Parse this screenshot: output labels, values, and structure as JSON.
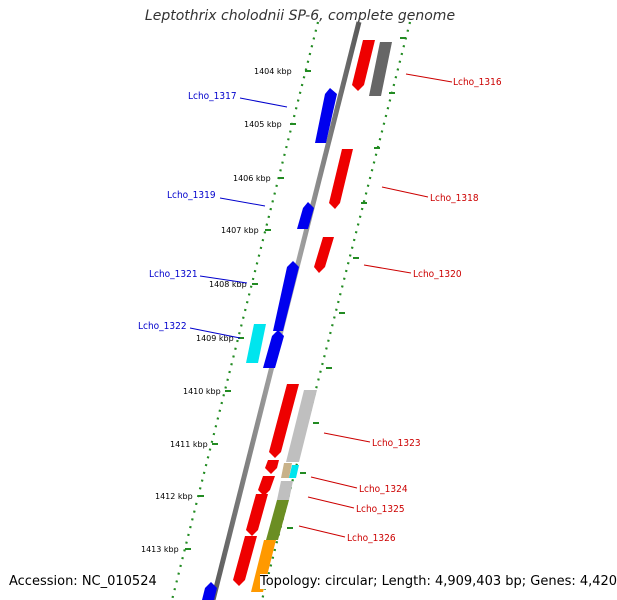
{
  "title": "Leptothrix cholodnii SP-6, complete genome",
  "footer": {
    "accession": "Accession: NC_010524",
    "summary": "Topology: circular; Length: 4,909,403 bp; Genes: 4,420"
  },
  "colors": {
    "forward_gene": "#0000ee",
    "reverse_gene": "#ee0000",
    "rrna_or_other_cyan": "#00e5ee",
    "hypothetical_gray": "#bfbfbf",
    "dark_gray": "#666666",
    "olive": "#6b8e23",
    "orange": "#ff9900",
    "tan": "#c8b28a",
    "tick_green": "#228b22",
    "backbone_gray": "#808080"
  },
  "kbp_ticks": [
    "1404 kbp",
    "1405 kbp",
    "1406 kbp",
    "1407 kbp",
    "1408 kbp",
    "1409 kbp",
    "1410 kbp",
    "1411 kbp",
    "1412 kbp",
    "1413 kbp"
  ],
  "gene_labels": {
    "forward": [
      "Lcho_1317",
      "Lcho_1319",
      "Lcho_1321",
      "Lcho_1322"
    ],
    "reverse": [
      "Lcho_1316",
      "Lcho_1318",
      "Lcho_1320",
      "Lcho_1323",
      "Lcho_1324",
      "Lcho_1325",
      "Lcho_1326"
    ]
  }
}
